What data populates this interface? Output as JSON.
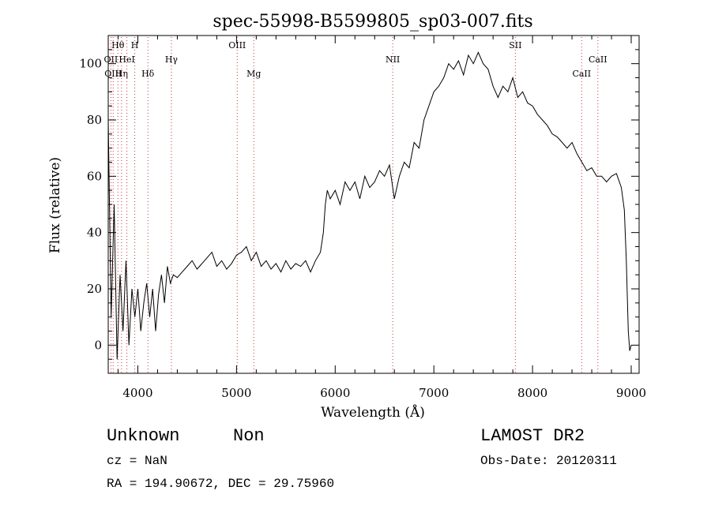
{
  "chart_data": {
    "type": "line",
    "title": "spec-55998-B5599805_sp03-007.fits",
    "xlabel": "Wavelength (Å)",
    "ylabel": "Flux (relative)",
    "xlim": [
      3700,
      9080
    ],
    "ylim": [
      -10,
      110
    ],
    "x_ticks": [
      "4000",
      "5000",
      "6000",
      "7000",
      "8000",
      "9000"
    ],
    "y_ticks": [
      "0",
      "20",
      "40",
      "60",
      "80",
      "100"
    ],
    "x_tick_values": [
      4000,
      5000,
      6000,
      7000,
      8000,
      9000
    ],
    "y_tick_values": [
      0,
      20,
      40,
      60,
      80,
      100
    ],
    "grid": false,
    "line_color": "#000000",
    "line_marker_color": "#cc3333",
    "series": [
      {
        "x": [
          3700,
          3730,
          3760,
          3790,
          3820,
          3850,
          3880,
          3910,
          3940,
          3970,
          4000,
          4030,
          4060,
          4090,
          4120,
          4150,
          4180,
          4210,
          4240,
          4270,
          4300,
          4330,
          4360,
          4400,
          4450,
          4500,
          4550,
          4600,
          4650,
          4700,
          4750,
          4800,
          4850,
          4900,
          4950,
          5000,
          5050,
          5100,
          5150,
          5200,
          5250,
          5300,
          5350,
          5400,
          5450,
          5500,
          5550,
          5600,
          5650,
          5700,
          5750,
          5800,
          5850,
          5880,
          5900,
          5920,
          5950,
          6000,
          6050,
          6100,
          6150,
          6200,
          6250,
          6300,
          6350,
          6400,
          6450,
          6500,
          6550,
          6600,
          6650,
          6700,
          6750,
          6800,
          6850,
          6900,
          6950,
          7000,
          7050,
          7100,
          7150,
          7200,
          7250,
          7300,
          7350,
          7400,
          7450,
          7500,
          7550,
          7600,
          7650,
          7700,
          7750,
          7800,
          7850,
          7900,
          7950,
          8000,
          8050,
          8100,
          8150,
          8200,
          8250,
          8300,
          8350,
          8400,
          8450,
          8500,
          8550,
          8600,
          8650,
          8700,
          8750,
          8800,
          8850,
          8900,
          8930,
          8950,
          8970,
          8985,
          9000
        ],
        "y": [
          80,
          10,
          50,
          -5,
          25,
          5,
          30,
          0,
          20,
          10,
          20,
          5,
          15,
          22,
          10,
          20,
          5,
          18,
          25,
          15,
          28,
          22,
          25,
          24,
          26,
          28,
          30,
          27,
          29,
          31,
          33,
          28,
          30,
          27,
          29,
          32,
          33,
          35,
          30,
          33,
          28,
          30,
          27,
          29,
          26,
          30,
          27,
          29,
          28,
          30,
          26,
          30,
          33,
          40,
          50,
          55,
          52,
          55,
          50,
          58,
          55,
          58,
          52,
          60,
          56,
          58,
          62,
          60,
          64,
          52,
          60,
          65,
          63,
          72,
          70,
          80,
          85,
          90,
          92,
          95,
          100,
          98,
          101,
          96,
          103,
          100,
          104,
          100,
          98,
          92,
          88,
          92,
          90,
          95,
          88,
          90,
          86,
          85,
          82,
          80,
          78,
          75,
          74,
          72,
          70,
          72,
          68,
          65,
          62,
          63,
          60,
          60,
          58,
          60,
          61,
          56,
          48,
          30,
          5,
          -2,
          0
        ]
      }
    ],
    "lines": [
      {
        "label": "Hθ",
        "x": 3798,
        "row": 1
      },
      {
        "label": "OII",
        "x": 3727,
        "row": 2
      },
      {
        "label": "OIII",
        "x": 3750,
        "row": 3
      },
      {
        "label": "Hη",
        "x": 3835,
        "row": 3
      },
      {
        "label": "H",
        "x": 3969,
        "row": 1
      },
      {
        "label": "HeI",
        "x": 3889,
        "row": 2
      },
      {
        "label": "Hδ",
        "x": 4102,
        "row": 3
      },
      {
        "label": "Hγ",
        "x": 4340,
        "row": 2
      },
      {
        "label": "OIII",
        "x": 5007,
        "row": 1
      },
      {
        "label": "Mg",
        "x": 5175,
        "row": 3
      },
      {
        "label": "NII",
        "x": 6583,
        "row": 2
      },
      {
        "label": "SII",
        "x": 7826,
        "row": 1
      },
      {
        "label": "CaII",
        "x": 8662,
        "row": 2
      },
      {
        "label": "CaII",
        "x": 8498,
        "row": 3
      }
    ]
  },
  "info": {
    "object_class": "Unknown",
    "object_subclass": "Non",
    "cz": "cz = NaN",
    "coords": "RA = 194.90672, DEC =  29.75960",
    "survey": "LAMOST DR2",
    "obs_date": "Obs-Date: 20120311"
  }
}
